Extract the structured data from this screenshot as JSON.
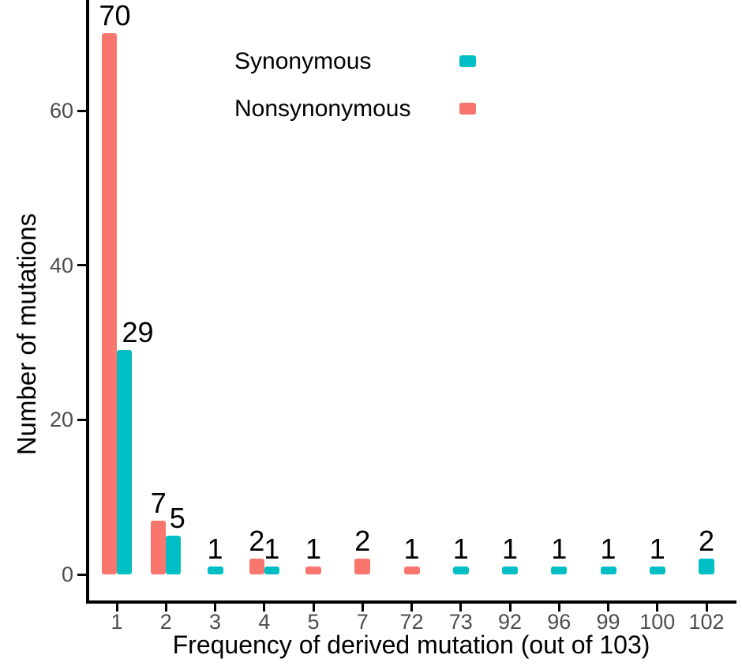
{
  "chart_data": {
    "type": "bar",
    "title": "",
    "xlabel": "Frequency of derived mutation (out of 103)",
    "ylabel": "Number of mutations",
    "categories": [
      "1",
      "2",
      "3",
      "4",
      "5",
      "7",
      "72",
      "73",
      "92",
      "96",
      "99",
      "100",
      "102"
    ],
    "series": [
      {
        "name": "Synonymous",
        "color": "#00BFC4",
        "values": [
          29,
          5,
          1,
          1,
          null,
          null,
          null,
          1,
          1,
          1,
          1,
          1,
          2
        ]
      },
      {
        "name": "Nonsynonymous",
        "color": "#F8766D",
        "values": [
          70,
          7,
          null,
          2,
          1,
          2,
          1,
          null,
          null,
          null,
          null,
          null,
          null
        ]
      }
    ],
    "bar_labels_shown": true,
    "yticks": [
      0,
      20,
      40,
      60
    ],
    "ylim": [
      0,
      74
    ],
    "grid": "off",
    "legend_position": "inside-top-left",
    "axis_color": "#000000",
    "tick_label_color": "#4d4d4d",
    "background_color": "#ffffff"
  }
}
